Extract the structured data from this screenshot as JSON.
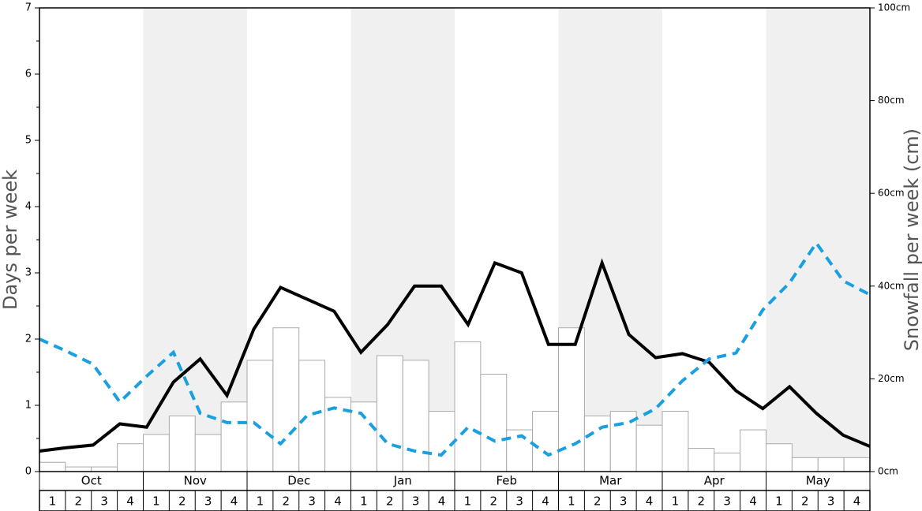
{
  "chart_data": {
    "type": "combo",
    "ylabel": "Days per week",
    "y2label": "Snowfall per week (cm)",
    "months": [
      "Oct",
      "Nov",
      "Dec",
      "Jan",
      "Feb",
      "Mar",
      "Apr",
      "May"
    ],
    "categories": [
      "1",
      "2",
      "3",
      "4",
      "1",
      "2",
      "3",
      "4",
      "1",
      "2",
      "3",
      "4",
      "1",
      "2",
      "3",
      "4",
      "1",
      "2",
      "3",
      "4",
      "1",
      "2",
      "3",
      "4",
      "1",
      "2",
      "3",
      "4",
      "1",
      "2",
      "3",
      "4"
    ],
    "ylim": [
      0,
      7
    ],
    "yticks": [
      0,
      1,
      2,
      3,
      4,
      5,
      6,
      7
    ],
    "y2lim": [
      0,
      100
    ],
    "y2ticks": [
      {
        "value": 0,
        "label": "0cm"
      },
      {
        "value": 20,
        "label": "20cm"
      },
      {
        "value": 40,
        "label": "40cm"
      },
      {
        "value": 60,
        "label": "60cm"
      },
      {
        "value": 80,
        "label": "80cm"
      },
      {
        "value": 100,
        "label": "100cm"
      }
    ],
    "series": [
      {
        "type": "bar",
        "axis": "y2",
        "color": "#ffffff",
        "values": [
          2,
          1,
          1,
          6,
          8,
          12,
          8,
          15,
          24,
          31,
          24,
          16,
          15,
          25,
          24,
          13,
          28,
          21,
          9,
          13,
          31,
          12,
          13,
          10,
          13,
          5,
          4,
          9,
          6,
          3,
          3,
          3
        ]
      },
      {
        "type": "line",
        "color": "#000000",
        "dashed": false,
        "values": [
          0.31,
          0.36,
          0.4,
          0.72,
          0.67,
          1.35,
          1.7,
          1.15,
          2.15,
          2.78,
          2.6,
          2.42,
          1.8,
          2.22,
          2.8,
          2.8,
          2.22,
          3.15,
          3.0,
          1.92,
          1.92,
          3.15,
          2.07,
          1.72,
          1.78,
          1.65,
          1.22,
          0.95,
          1.28,
          0.88,
          0.55,
          0.38
        ]
      },
      {
        "type": "line",
        "color": "#1a9fe0",
        "dashed": true,
        "values": [
          2.0,
          1.82,
          1.62,
          1.05,
          1.44,
          1.8,
          0.88,
          0.74,
          0.74,
          0.42,
          0.85,
          0.96,
          0.88,
          0.42,
          0.31,
          0.25,
          0.67,
          0.46,
          0.54,
          0.25,
          0.42,
          0.67,
          0.74,
          0.95,
          1.37,
          1.7,
          1.79,
          2.44,
          2.85,
          3.45,
          2.88,
          2.67
        ]
      }
    ]
  }
}
